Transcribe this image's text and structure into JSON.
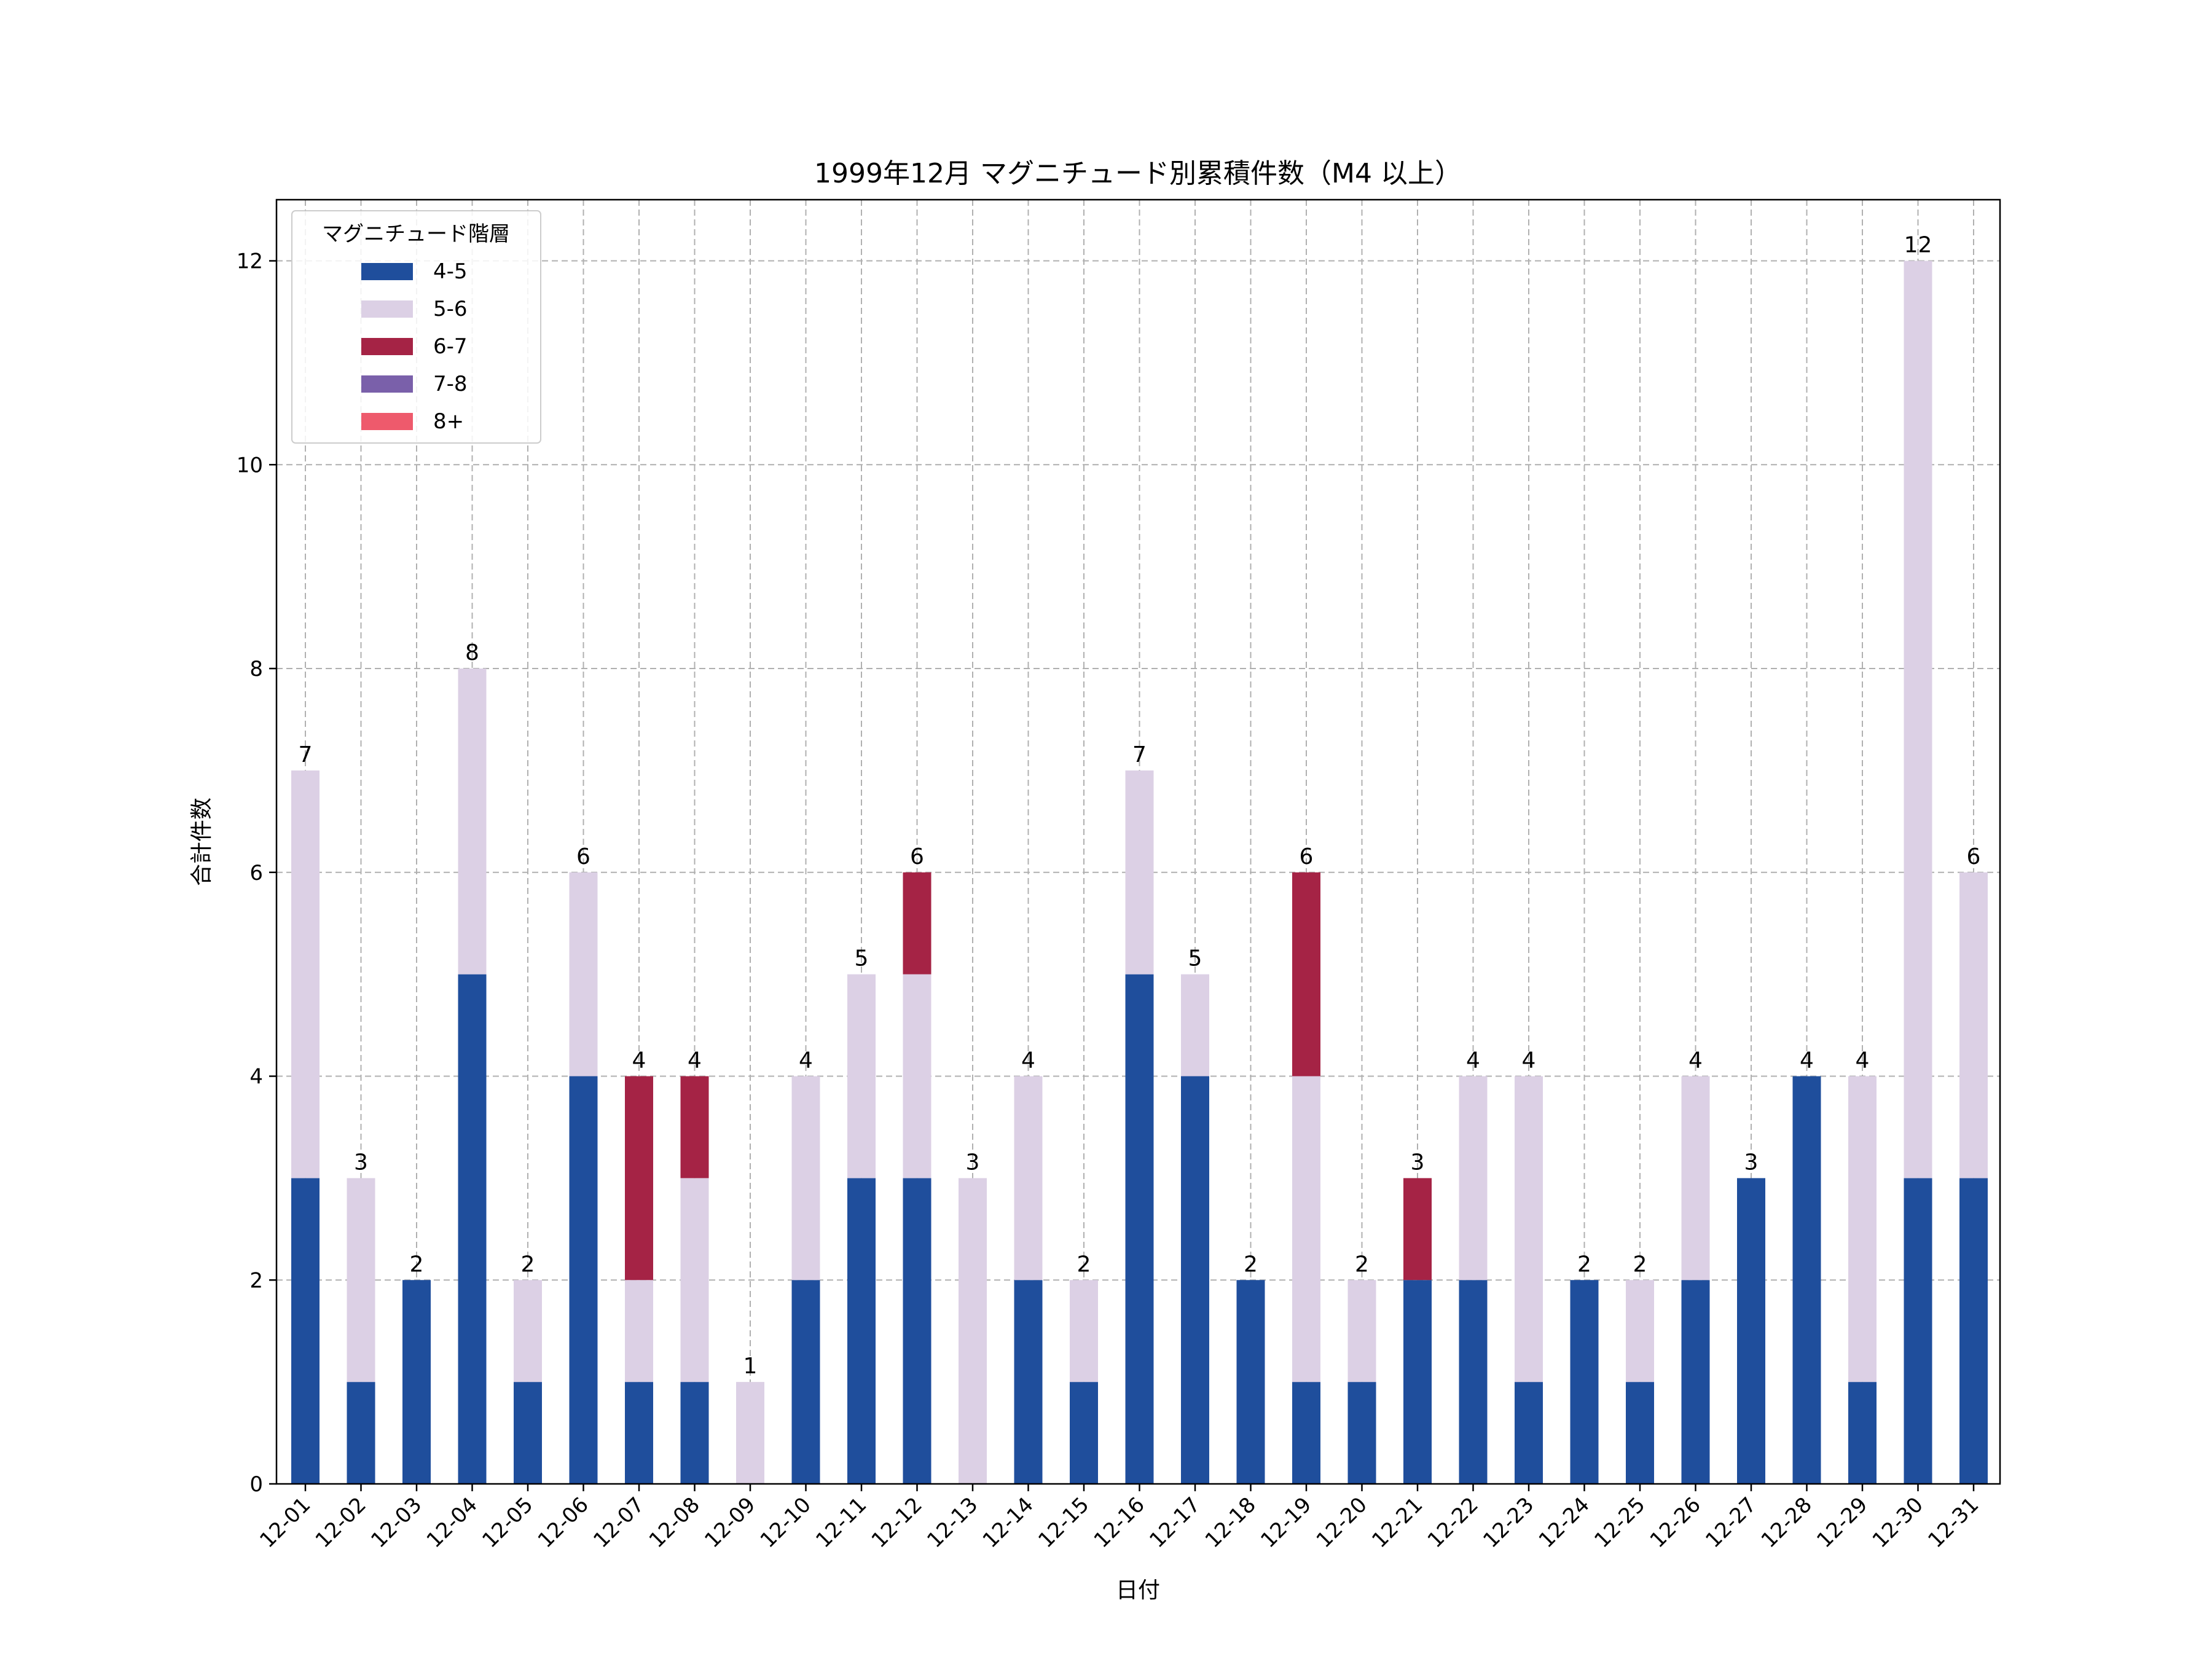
{
  "chart_data": {
    "type": "bar",
    "stacked": true,
    "title": "1999年12月 マグニチュード別累積件数（M4 以上）",
    "xlabel": "日付",
    "ylabel": "合計件数",
    "ylim": [
      0,
      12.6
    ],
    "yticks": [
      0,
      2,
      4,
      6,
      8,
      10,
      12
    ],
    "grid": true,
    "legend": {
      "title": "マグニチュード階層",
      "placement": "top-left"
    },
    "categories": [
      "12-01",
      "12-02",
      "12-03",
      "12-04",
      "12-05",
      "12-06",
      "12-07",
      "12-08",
      "12-09",
      "12-10",
      "12-11",
      "12-12",
      "12-13",
      "12-14",
      "12-15",
      "12-16",
      "12-17",
      "12-18",
      "12-19",
      "12-20",
      "12-21",
      "12-22",
      "12-23",
      "12-24",
      "12-25",
      "12-26",
      "12-27",
      "12-28",
      "12-29",
      "12-30",
      "12-31"
    ],
    "series": [
      {
        "name": "4-5",
        "color": "#1f4e9c",
        "values": [
          3,
          1,
          2,
          5,
          1,
          4,
          1,
          1,
          0,
          2,
          3,
          3,
          0,
          2,
          1,
          5,
          4,
          2,
          1,
          1,
          2,
          2,
          1,
          2,
          1,
          2,
          3,
          4,
          1,
          3,
          3
        ]
      },
      {
        "name": "5-6",
        "color": "#dcd0e5",
        "values": [
          4,
          2,
          0,
          3,
          1,
          2,
          1,
          2,
          1,
          2,
          2,
          2,
          3,
          2,
          1,
          2,
          1,
          0,
          3,
          1,
          0,
          2,
          3,
          0,
          1,
          2,
          0,
          0,
          3,
          9,
          3
        ]
      },
      {
        "name": "6-7",
        "color": "#a52345",
        "values": [
          0,
          0,
          0,
          0,
          0,
          0,
          2,
          1,
          0,
          0,
          0,
          1,
          0,
          0,
          0,
          0,
          0,
          0,
          2,
          0,
          1,
          0,
          0,
          0,
          0,
          0,
          0,
          0,
          0,
          0,
          0
        ]
      },
      {
        "name": "7-8",
        "color": "#7a60aa",
        "values": [
          0,
          0,
          0,
          0,
          0,
          0,
          0,
          0,
          0,
          0,
          0,
          0,
          0,
          0,
          0,
          0,
          0,
          0,
          0,
          0,
          0,
          0,
          0,
          0,
          0,
          0,
          0,
          0,
          0,
          0,
          0
        ]
      },
      {
        "name": "8+",
        "color": "#ee5a6c",
        "values": [
          0,
          0,
          0,
          0,
          0,
          0,
          0,
          0,
          0,
          0,
          0,
          0,
          0,
          0,
          0,
          0,
          0,
          0,
          0,
          0,
          0,
          0,
          0,
          0,
          0,
          0,
          0,
          0,
          0,
          0,
          0
        ]
      }
    ],
    "totals": [
      7,
      3,
      2,
      8,
      2,
      6,
      4,
      4,
      1,
      4,
      5,
      6,
      3,
      4,
      2,
      7,
      5,
      2,
      6,
      2,
      3,
      4,
      4,
      2,
      2,
      4,
      3,
      4,
      4,
      12,
      6
    ]
  }
}
